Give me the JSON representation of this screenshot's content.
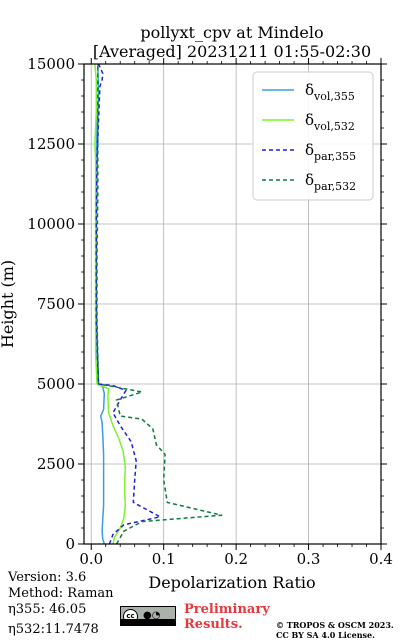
{
  "chart_data": {
    "type": "line",
    "title": "pollyxt_cpv at Mindelo",
    "subtitle": "[Averaged] 20231211 01:55-02:30",
    "xlabel": "Depolarization Ratio",
    "ylabel": "Height (m)",
    "xlim": [
      -0.01,
      0.4
    ],
    "ylim": [
      0,
      15000
    ],
    "xticks": [
      "0.0",
      "0.1",
      "0.2",
      "0.3",
      "0.4"
    ],
    "yticks": [
      "0",
      "2500",
      "5000",
      "7500",
      "10000",
      "12500",
      "15000"
    ],
    "grid": true,
    "legend_position": "top-right",
    "series": [
      {
        "name": "δvol,355",
        "color": "#3a9de2",
        "dash": "solid",
        "points": [
          [
            0.018,
            0
          ],
          [
            0.016,
            150
          ],
          [
            0.015,
            400
          ],
          [
            0.016,
            800
          ],
          [
            0.017,
            1200
          ],
          [
            0.017,
            2000
          ],
          [
            0.017,
            2800
          ],
          [
            0.016,
            3400
          ],
          [
            0.015,
            3800
          ],
          [
            0.013,
            4000
          ],
          [
            0.017,
            4200
          ],
          [
            0.018,
            4700
          ],
          [
            0.016,
            4900
          ],
          [
            0.01,
            5000
          ],
          [
            0.008,
            6000
          ],
          [
            0.007,
            8000
          ],
          [
            0.007,
            10000
          ],
          [
            0.007,
            12000
          ],
          [
            0.008,
            13000
          ],
          [
            0.01,
            14000
          ],
          [
            0.009,
            15000
          ]
        ]
      },
      {
        "name": "δvol,532",
        "color": "#7cf32b",
        "dash": "solid",
        "points": [
          [
            0.03,
            0
          ],
          [
            0.032,
            200
          ],
          [
            0.04,
            500
          ],
          [
            0.045,
            800
          ],
          [
            0.047,
            1200
          ],
          [
            0.046,
            1800
          ],
          [
            0.047,
            2400
          ],
          [
            0.044,
            2900
          ],
          [
            0.038,
            3300
          ],
          [
            0.03,
            3700
          ],
          [
            0.024,
            4100
          ],
          [
            0.023,
            4600
          ],
          [
            0.024,
            4850
          ],
          [
            0.008,
            5000
          ],
          [
            0.006,
            6000
          ],
          [
            0.006,
            8000
          ],
          [
            0.006,
            10000
          ],
          [
            0.006,
            12000
          ],
          [
            0.005,
            12500
          ],
          [
            0.007,
            13500
          ],
          [
            0.007,
            14500
          ],
          [
            0.005,
            15000
          ]
        ]
      },
      {
        "name": "δpar,355",
        "color": "#1f1fdb",
        "dash": "dashed",
        "points": [
          [
            0.025,
            0
          ],
          [
            0.03,
            300
          ],
          [
            0.045,
            600
          ],
          [
            0.095,
            850
          ],
          [
            0.058,
            1300
          ],
          [
            0.06,
            2000
          ],
          [
            0.062,
            2600
          ],
          [
            0.055,
            3200
          ],
          [
            0.04,
            3700
          ],
          [
            0.03,
            4100
          ],
          [
            0.04,
            4500
          ],
          [
            0.048,
            4800
          ],
          [
            0.03,
            4950
          ],
          [
            0.01,
            5000
          ],
          [
            0.007,
            7000
          ],
          [
            0.007,
            10000
          ],
          [
            0.008,
            12000
          ],
          [
            0.012,
            14300
          ],
          [
            0.015,
            14500
          ],
          [
            0.016,
            14700
          ],
          [
            0.01,
            15000
          ]
        ]
      },
      {
        "name": "δpar,532",
        "color": "#0a7a3f",
        "dash": "dashed",
        "points": [
          [
            0.035,
            0
          ],
          [
            0.04,
            200
          ],
          [
            0.045,
            400
          ],
          [
            0.07,
            700
          ],
          [
            0.18,
            900
          ],
          [
            0.105,
            1300
          ],
          [
            0.1,
            2000
          ],
          [
            0.102,
            2800
          ],
          [
            0.09,
            3100
          ],
          [
            0.085,
            3600
          ],
          [
            0.07,
            3900
          ],
          [
            0.04,
            4000
          ],
          [
            0.035,
            4500
          ],
          [
            0.07,
            4750
          ],
          [
            0.035,
            4900
          ],
          [
            0.01,
            5000
          ],
          [
            0.008,
            7000
          ],
          [
            0.008,
            9000
          ],
          [
            0.009,
            11000
          ],
          [
            0.009,
            13000
          ],
          [
            0.009,
            15000
          ]
        ]
      }
    ]
  },
  "legend": {
    "items": [
      {
        "main": "δ",
        "sub": "vol, 355",
        "color": "#3a9de2",
        "dash": "solid"
      },
      {
        "main": "δ",
        "sub": "vol, 532",
        "color": "#7cf32b",
        "dash": "solid"
      },
      {
        "main": "δ",
        "sub": "par, 355",
        "color": "#1f1fdb",
        "dash": "dashed"
      },
      {
        "main": "δ",
        "sub": "par, 532",
        "color": "#0a7a3f",
        "dash": "dashed"
      }
    ]
  },
  "info": {
    "version": "Version: 3.6",
    "method": "Method: Raman",
    "eta355_label": "η355:",
    "eta355_value": "46.05",
    "eta532_label": "η532:",
    "eta532_value": "11.7478"
  },
  "footer": {
    "license_badge_text": "cc",
    "preliminary_line1": "Preliminary",
    "preliminary_line2": "Results.",
    "credit_line1": "© TROPOS & OSCM 2023.",
    "credit_line2": "CC BY SA 4.0 License."
  }
}
